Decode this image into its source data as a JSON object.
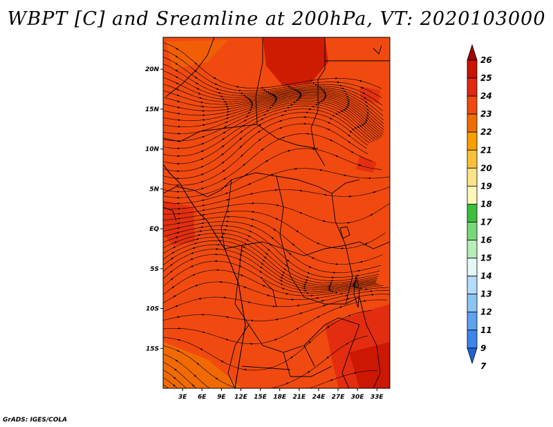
{
  "title": "WBPT [C] and Sreamline at 200hPa, VT: 2020103000",
  "credit": "GrADS: IGES/COLA",
  "map": {
    "lon_range": [
      0,
      35
    ],
    "lat_range": [
      -20,
      24
    ],
    "lat_ticks": [
      {
        "label": "20N",
        "value": 20
      },
      {
        "label": "15N",
        "value": 15
      },
      {
        "label": "10N",
        "value": 10
      },
      {
        "label": "5N",
        "value": 5
      },
      {
        "label": "EQ",
        "value": 0
      },
      {
        "label": "5S",
        "value": -5
      },
      {
        "label": "10S",
        "value": -10
      },
      {
        "label": "15S",
        "value": -15
      }
    ],
    "lon_ticks": [
      {
        "label": "3E",
        "value": 3
      },
      {
        "label": "6E",
        "value": 6
      },
      {
        "label": "9E",
        "value": 9
      },
      {
        "label": "12E",
        "value": 12
      },
      {
        "label": "15E",
        "value": 15
      },
      {
        "label": "18E",
        "value": 18
      },
      {
        "label": "21E",
        "value": 21
      },
      {
        "label": "24E",
        "value": 24
      },
      {
        "label": "27E",
        "value": 27
      },
      {
        "label": "30E",
        "value": 30
      },
      {
        "label": "33E",
        "value": 33
      }
    ],
    "background_color": "#f04a10"
  },
  "colorbar": {
    "levels": [
      {
        "label": "26",
        "color": "#a40000"
      },
      {
        "label": "25",
        "color": "#c81400"
      },
      {
        "label": "24",
        "color": "#e02810"
      },
      {
        "label": "23",
        "color": "#f04a10"
      },
      {
        "label": "22",
        "color": "#f06e00"
      },
      {
        "label": "21",
        "color": "#f8a000"
      },
      {
        "label": "20",
        "color": "#fcc038"
      },
      {
        "label": "19",
        "color": "#fee488"
      },
      {
        "label": "18",
        "color": "#fff8b8"
      },
      {
        "label": "17",
        "color": "#3cbf3c"
      },
      {
        "label": "16",
        "color": "#7ad87a"
      },
      {
        "label": "15",
        "color": "#b8edb8"
      },
      {
        "label": "14",
        "color": "#e4f8f8"
      },
      {
        "label": "13",
        "color": "#b4dcfa"
      },
      {
        "label": "12",
        "color": "#8cc4f6"
      },
      {
        "label": "11",
        "color": "#5ea2f0"
      },
      {
        "label": "9",
        "color": "#3c86ea"
      },
      {
        "label": "7",
        "color": "#1e64d8"
      }
    ]
  }
}
